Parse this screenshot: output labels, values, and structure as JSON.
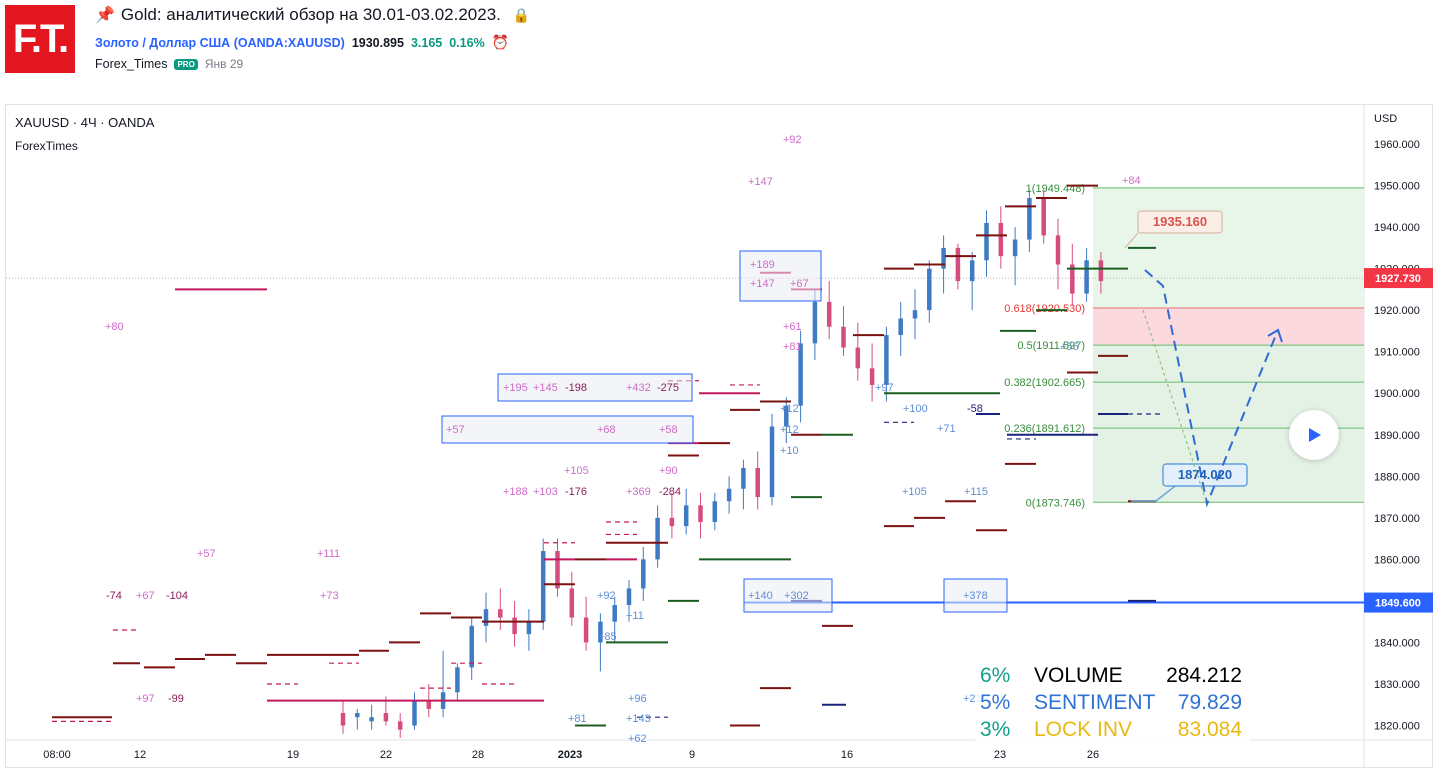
{
  "header": {
    "logo_text": "F.T.",
    "title": "Gold: аналитический обзор на 30.01-03.02.2023.",
    "symbol_name": "Золото / Доллар США",
    "symbol_ticker": "(OANDA:XAUUSD)",
    "price": "1930.895",
    "change": "3.165",
    "change_pct": "0.16%",
    "author": "Forex_Times",
    "badge": "PRO",
    "date": "Янв 29",
    "pin_icon": "pin-icon",
    "lock_icon": "lock-icon",
    "alarm_icon": "alarm-clock-icon"
  },
  "chart_data": {
    "type": "candlestick",
    "symbol_title": "XAUUSD · 4Ч · OANDA",
    "study": "ForexTimes",
    "currency": "USD",
    "ylim": [
      1816,
      1968
    ],
    "y_ticks": [
      1820,
      1830,
      1840,
      1850,
      1860,
      1870,
      1880,
      1890,
      1900,
      1910,
      1920,
      1930,
      1940,
      1950,
      1960
    ],
    "x_ticks": [
      "08:00",
      "12",
      "19",
      "22",
      "28",
      "2023",
      "9",
      "16",
      "23",
      "26"
    ],
    "last_price_label": "1927.730",
    "hline_label": "1849.600",
    "hline_price": 1849.6,
    "fibonacci": [
      {
        "level": "1(1949.448)",
        "price": 1949.448
      },
      {
        "level": "0.618(1920.530)",
        "price": 1920.53
      },
      {
        "level": "0.5(1911.597)",
        "price": 1911.597
      },
      {
        "level": "0.382(1902.665)",
        "price": 1902.665
      },
      {
        "level": "0.236(1891.612)",
        "price": 1891.612
      },
      {
        "level": "0(1873.746)",
        "price": 1873.746
      }
    ],
    "callouts": [
      {
        "text": "1935.160",
        "price": 1935.16
      },
      {
        "text": "1874.020",
        "price": 1874.02
      }
    ],
    "annotations": [
      "+92",
      "+147",
      "+189",
      "+147",
      "+67",
      "+84",
      "+80",
      "+61",
      "+81",
      "+56",
      "+97",
      "+100",
      "-58",
      "+71",
      "+195",
      "+145",
      "-198",
      "+432",
      "-275",
      "+57",
      "+68",
      "+58",
      "+12",
      "+12",
      "+10",
      "+105",
      "+90",
      "+188",
      "+103",
      "-176",
      "+369",
      "-284",
      "+105",
      "+115",
      "+57",
      "+111",
      "-74",
      "+67",
      "-104",
      "+73",
      "+92",
      "+11",
      "+85",
      "+140",
      "+302",
      "+378",
      "+97",
      "-99",
      "+96",
      "+81",
      "+143",
      "+62",
      "+21"
    ],
    "stats": [
      {
        "pct": "6%",
        "label": "VOLUME",
        "value": "284.212"
      },
      {
        "pct": "5%",
        "label": "SENTIMENT",
        "value": "79.829"
      },
      {
        "pct": "3%",
        "label": "LOCK INV",
        "value": "83.084"
      }
    ],
    "candles": [
      [
        1823,
        1826,
        1818,
        1820
      ],
      [
        1822,
        1824,
        1819,
        1823
      ],
      [
        1821,
        1825,
        1819,
        1822
      ],
      [
        1823,
        1827,
        1820,
        1821
      ],
      [
        1821,
        1823,
        1817,
        1819
      ],
      [
        1820,
        1828,
        1819,
        1826
      ],
      [
        1826,
        1830,
        1822,
        1824
      ],
      [
        1824,
        1838,
        1822,
        1828
      ],
      [
        1828,
        1835,
        1826,
        1834
      ],
      [
        1834,
        1846,
        1831,
        1844
      ],
      [
        1844,
        1852,
        1840,
        1848
      ],
      [
        1848,
        1853,
        1843,
        1846
      ],
      [
        1846,
        1850,
        1839,
        1842
      ],
      [
        1842,
        1848,
        1838,
        1845
      ],
      [
        1845,
        1865,
        1843,
        1862
      ],
      [
        1862,
        1865,
        1851,
        1853
      ],
      [
        1853,
        1857,
        1844,
        1846
      ],
      [
        1846,
        1851,
        1838,
        1840
      ],
      [
        1840,
        1847,
        1833,
        1845
      ],
      [
        1845,
        1851,
        1840,
        1849
      ],
      [
        1849,
        1855,
        1845,
        1853
      ],
      [
        1853,
        1863,
        1850,
        1860
      ],
      [
        1860,
        1873,
        1858,
        1870
      ],
      [
        1870,
        1876,
        1865,
        1868
      ],
      [
        1868,
        1877,
        1866,
        1873
      ],
      [
        1873,
        1876,
        1865,
        1869
      ],
      [
        1869,
        1876,
        1867,
        1874
      ],
      [
        1874,
        1880,
        1871,
        1877
      ],
      [
        1877,
        1884,
        1872,
        1882
      ],
      [
        1882,
        1886,
        1872,
        1875
      ],
      [
        1875,
        1895,
        1873,
        1892
      ],
      [
        1892,
        1899,
        1888,
        1897
      ],
      [
        1897,
        1915,
        1893,
        1912
      ],
      [
        1912,
        1925,
        1908,
        1922
      ],
      [
        1922,
        1927,
        1913,
        1916
      ],
      [
        1916,
        1921,
        1909,
        1911
      ],
      [
        1911,
        1917,
        1903,
        1906
      ],
      [
        1906,
        1912,
        1898,
        1902
      ],
      [
        1902,
        1916,
        1898,
        1914
      ],
      [
        1914,
        1922,
        1909,
        1918
      ],
      [
        1918,
        1925,
        1913,
        1920
      ],
      [
        1920,
        1932,
        1917,
        1930
      ],
      [
        1930,
        1938,
        1924,
        1935
      ],
      [
        1935,
        1936,
        1925,
        1927
      ],
      [
        1927,
        1934,
        1920,
        1932
      ],
      [
        1932,
        1944,
        1928,
        1941
      ],
      [
        1941,
        1945,
        1930,
        1933
      ],
      [
        1933,
        1940,
        1926,
        1937
      ],
      [
        1937,
        1949,
        1934,
        1947
      ],
      [
        1947,
        1949,
        1936,
        1938
      ],
      [
        1938,
        1942,
        1925,
        1931
      ],
      [
        1931,
        1936,
        1921,
        1924
      ],
      [
        1924,
        1935,
        1922,
        1932
      ],
      [
        1932,
        1934,
        1924,
        1927
      ]
    ]
  }
}
